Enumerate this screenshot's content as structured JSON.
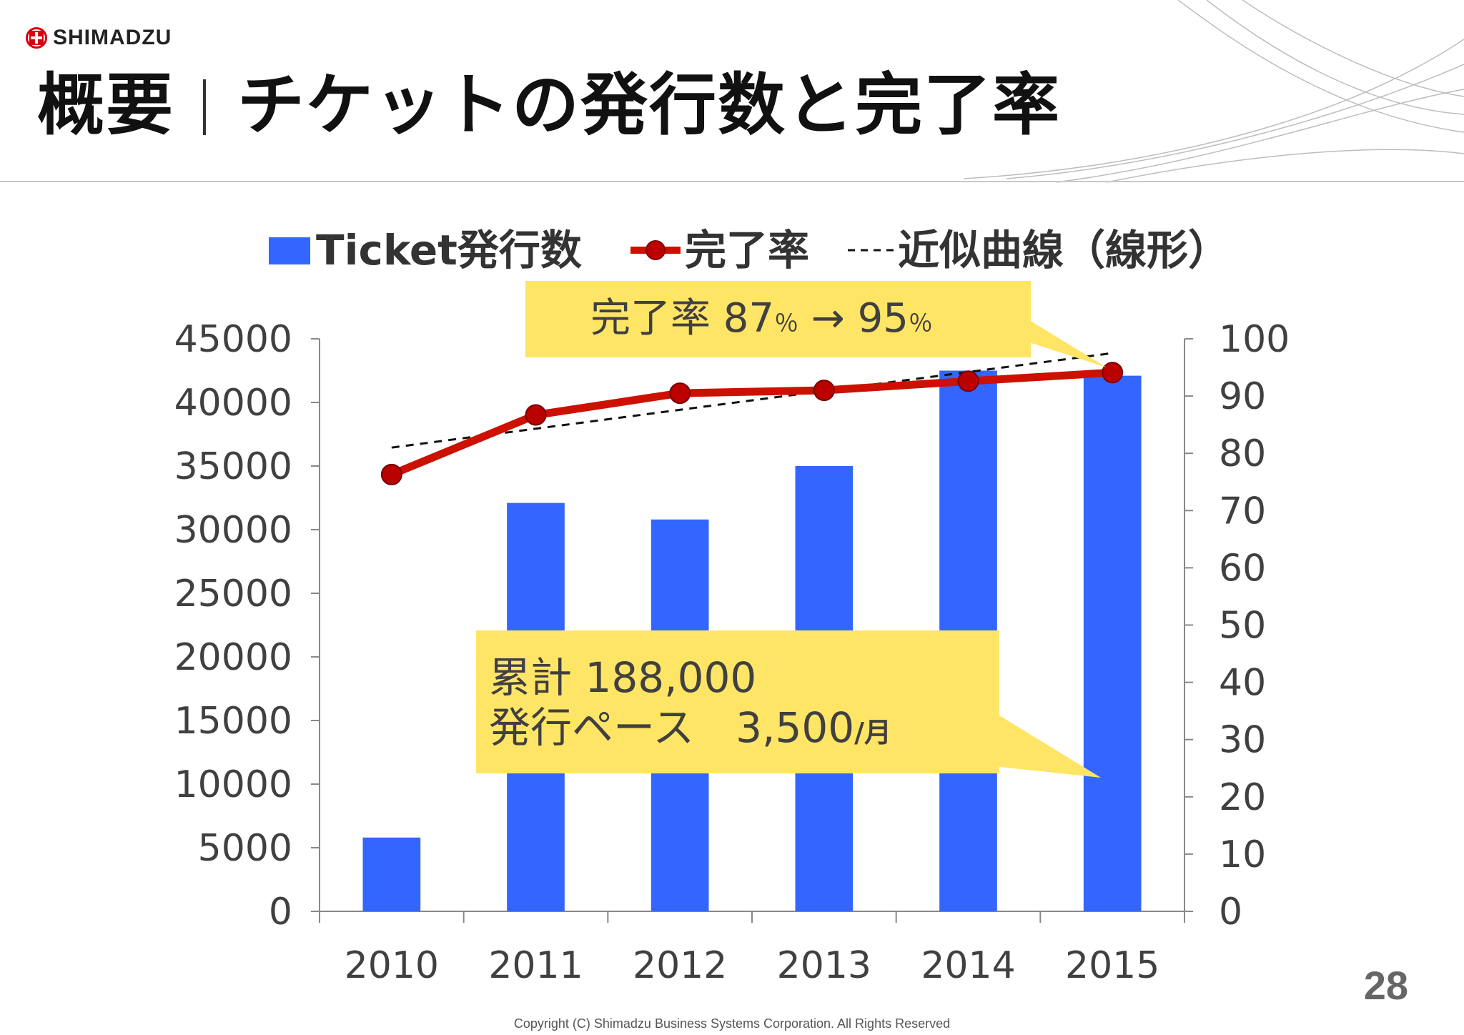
{
  "brand": {
    "name": "SHIMADZU"
  },
  "header": {
    "title_part1": "概要",
    "title_part2": "チケットの発行数と完了率"
  },
  "colors": {
    "bar": "#3366FF",
    "line": "#CC1100",
    "marker": "#BB0000",
    "callout": "#FFE566"
  },
  "legend": {
    "bar_label": "Ticket発行数",
    "line_label": "完了率",
    "trend_label": "近似曲線（線形）"
  },
  "callouts": {
    "rate_main": "完了率 87",
    "rate_unit1": "％",
    "rate_arrow": " → 95",
    "rate_unit2": "％",
    "total_line1": "累計 188,000",
    "total_line2_main": "発行ペース　3,500",
    "total_line2_unit": "/月"
  },
  "chart_data": {
    "type": "bar",
    "categories": [
      "2010",
      "2011",
      "2012",
      "2013",
      "2014",
      "2015"
    ],
    "series": [
      {
        "name": "Ticket発行数",
        "type": "bar",
        "axis": "left",
        "values": [
          5800,
          32100,
          30800,
          35000,
          42500,
          42100
        ]
      },
      {
        "name": "完了率",
        "type": "line",
        "axis": "right",
        "values": [
          76.3,
          86.7,
          90.5,
          91.0,
          92.6,
          94.1
        ]
      },
      {
        "name": "近似曲線（線形）",
        "type": "trendline",
        "axis": "right",
        "values": [
          81.0,
          84.3,
          87.6,
          90.9,
          94.2,
          97.5
        ]
      }
    ],
    "y_left": {
      "range": [
        0,
        45000
      ],
      "ticks": [
        "0",
        "5000",
        "10000",
        "15000",
        "20000",
        "25000",
        "30000",
        "35000",
        "40000",
        "45000"
      ]
    },
    "y_right": {
      "range": [
        0,
        100
      ],
      "ticks": [
        "0",
        "10",
        "20",
        "30",
        "40",
        "50",
        "60",
        "70",
        "80",
        "90",
        "100"
      ]
    },
    "grid": false,
    "legend_position": "top"
  },
  "footer": {
    "page_number": "28",
    "copyright": "Copyright (C) Shimadzu Business Systems Corporation. All Rights Reserved"
  }
}
